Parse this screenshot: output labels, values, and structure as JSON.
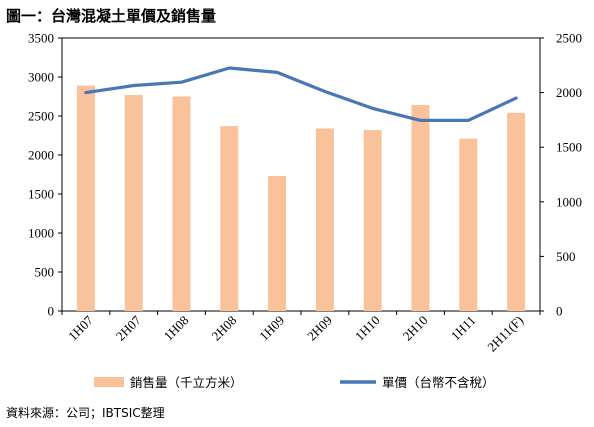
{
  "title": "圖一：台灣混凝土單價及銷售量",
  "source": "資料來源：公司；IBTSIC整理",
  "chart_data": {
    "type": "bar+line",
    "categories": [
      "1H07",
      "2H07",
      "1H08",
      "2H08",
      "1H09",
      "2H09",
      "1H10",
      "2H10",
      "1H11",
      "2H11(F)"
    ],
    "series": [
      {
        "name": "銷售量（千立方米）",
        "type": "bar",
        "axis": "left",
        "color": "#F9C29A",
        "values": [
          2890,
          2770,
          2750,
          2370,
          1730,
          2340,
          2320,
          2640,
          2210,
          2540
        ]
      },
      {
        "name": "單價（台幣不含稅）",
        "type": "line",
        "axis": "right",
        "color": "#4877B6",
        "values": [
          2000,
          2065,
          2095,
          2225,
          2185,
          2010,
          1855,
          1745,
          1745,
          1950
        ]
      }
    ],
    "y_left": {
      "min": 0,
      "max": 3500,
      "ticks": [
        0,
        500,
        1000,
        1500,
        2000,
        2500,
        3000,
        3500
      ]
    },
    "y_right": {
      "min": 0,
      "max": 2500,
      "ticks": [
        0,
        500,
        1000,
        1500,
        2000,
        2500
      ]
    },
    "grid": false,
    "legend": "bottom"
  }
}
